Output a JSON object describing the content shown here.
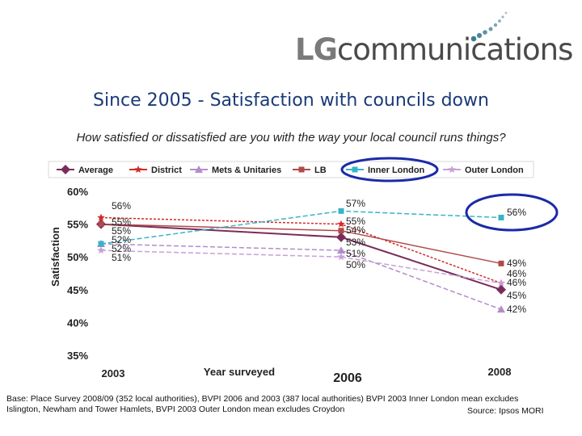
{
  "header": {
    "logo_prefix": "LG",
    "logo_suffix": "communications"
  },
  "title": "Since 2005 - Satisfaction with councils down",
  "question": "How satisfied or dissatisfied are you with the way your local council runs things?",
  "footnote": {
    "base": "Base: Place Survey 2008/09 (352 local authorities), BVPI 2006 and 2003 (387 local authorities) BVPI 2003 Inner London mean excludes Islington, Newham and Tower Hamlets, BVPI 2003 Outer London mean excludes Croydon",
    "source": "Source: Ipsos MORI"
  },
  "chart_data": {
    "type": "line",
    "x": [
      "2003",
      "2006",
      "2008"
    ],
    "xlabel": "Year surveyed",
    "ylabel": "Satisfaction",
    "yticks": [
      "35%",
      "40%",
      "45%",
      "50%",
      "55%",
      "60%"
    ],
    "ylim": [
      35,
      60
    ],
    "legend_position": "top",
    "highlight": "Inner London",
    "series": [
      {
        "name": "Average",
        "color": "#7a2d5a",
        "marker": "diamond",
        "values": [
          55,
          53,
          45
        ],
        "labels": [
          "55%",
          "53%",
          "45%"
        ]
      },
      {
        "name": "District",
        "color": "#d42a2a",
        "marker": "star",
        "values": [
          56,
          55,
          46
        ],
        "labels": [
          "56%",
          "55%",
          "46%"
        ]
      },
      {
        "name": "Mets & Unitaries",
        "color": "#b48cc8",
        "marker": "triangle",
        "values": [
          52,
          51,
          42
        ],
        "labels": [
          "52%",
          "51%",
          "42%"
        ]
      },
      {
        "name": "LB",
        "color": "#b04a4a",
        "marker": "square",
        "values": [
          55,
          54,
          49
        ],
        "labels": [
          "55%",
          "54%",
          "49%"
        ]
      },
      {
        "name": "Inner London",
        "color": "#38b4c8",
        "marker": "square",
        "values": [
          52,
          57,
          56
        ],
        "labels": [
          "52%",
          "57%",
          "56%"
        ]
      },
      {
        "name": "Outer London",
        "color": "#c8a0d8",
        "marker": "star",
        "values": [
          51,
          50,
          46
        ],
        "labels": [
          "51%",
          "50%",
          "46%"
        ]
      }
    ]
  }
}
